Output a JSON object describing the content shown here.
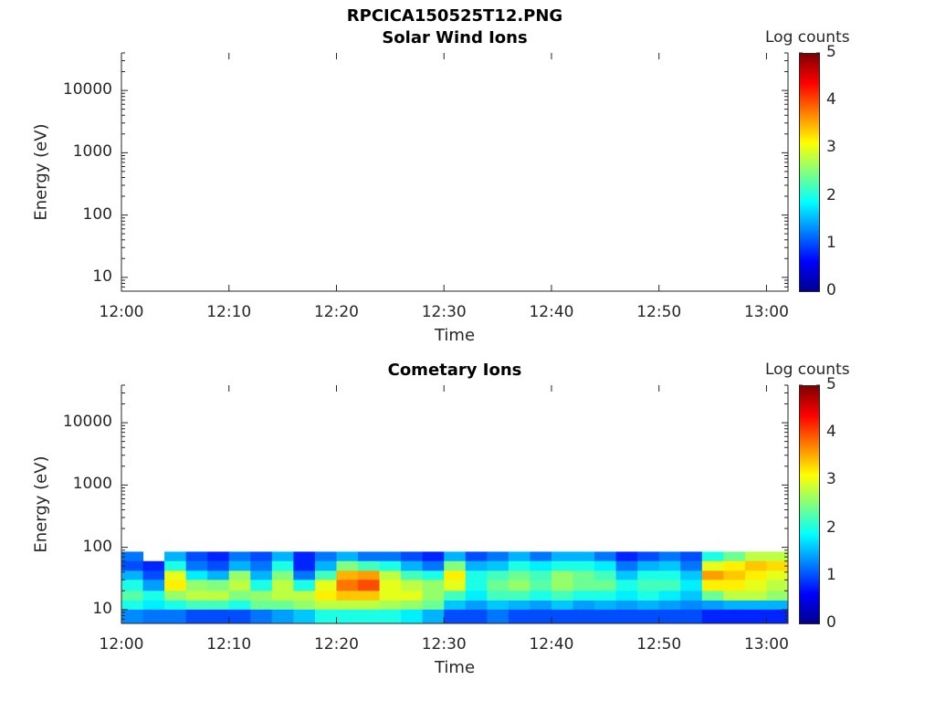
{
  "figure_title": "RPCICA150525T12.PNG",
  "chart_data": [
    {
      "type": "heatmap",
      "title": "Solar Wind Ions",
      "xlabel": "Time",
      "ylabel": "Energy (eV)",
      "xtick_labels": [
        "12:00",
        "12:10",
        "12:20",
        "12:30",
        "12:40",
        "12:50",
        "13:00"
      ],
      "xtick_minutes": [
        0,
        10,
        20,
        30,
        40,
        50,
        60
      ],
      "xlim_minutes": [
        0,
        62
      ],
      "yscale": "log",
      "ytick_labels": [
        "10",
        "100",
        "1000",
        "10000"
      ],
      "ytick_values": [
        10,
        100,
        1000,
        10000
      ],
      "ylim": [
        6,
        40000
      ],
      "colorbar": {
        "label": "Log counts",
        "range": [
          0,
          5
        ],
        "tick_labels": [
          "0",
          "1",
          "2",
          "3",
          "4",
          "5"
        ],
        "colormap": "jet"
      },
      "energy_bin_edges": [],
      "time_bin_minutes": 2,
      "z": []
    },
    {
      "type": "heatmap",
      "title": "Cometary Ions",
      "xlabel": "Time",
      "ylabel": "Energy (eV)",
      "xtick_labels": [
        "12:00",
        "12:10",
        "12:20",
        "12:30",
        "12:40",
        "12:50",
        "13:00"
      ],
      "xtick_minutes": [
        0,
        10,
        20,
        30,
        40,
        50,
        60
      ],
      "xlim_minutes": [
        0,
        62
      ],
      "yscale": "log",
      "ytick_labels": [
        "10",
        "100",
        "1000",
        "10000"
      ],
      "ytick_values": [
        10,
        100,
        1000,
        10000
      ],
      "ylim": [
        6,
        40000
      ],
      "colorbar": {
        "label": "Log counts",
        "range": [
          0,
          5
        ],
        "tick_labels": [
          "0",
          "1",
          "2",
          "3",
          "4",
          "5"
        ],
        "colormap": "jet"
      },
      "energy_bin_edges": [
        85,
        60,
        42,
        30,
        20,
        14,
        10,
        6
      ],
      "time_bin_minutes": 2,
      "z": [
        [
          1.2,
          1.0,
          1.5,
          2.0,
          2.3,
          2.0,
          1.3
        ],
        [
          null,
          0.8,
          1.0,
          1.4,
          2.0,
          1.8,
          1.2
        ],
        [
          1.5,
          2.0,
          3.0,
          3.2,
          2.6,
          2.0,
          1.2
        ],
        [
          1.0,
          1.2,
          1.8,
          2.6,
          2.8,
          2.2,
          1.0
        ],
        [
          0.8,
          1.0,
          1.5,
          2.5,
          2.8,
          2.2,
          1.0
        ],
        [
          1.2,
          1.5,
          2.6,
          2.8,
          2.5,
          2.0,
          1.0
        ],
        [
          1.0,
          1.2,
          1.5,
          2.0,
          2.6,
          2.4,
          1.2
        ],
        [
          1.5,
          2.0,
          2.5,
          2.8,
          2.8,
          2.4,
          1.4
        ],
        [
          0.8,
          0.8,
          1.2,
          2.0,
          2.8,
          2.6,
          1.6
        ],
        [
          1.2,
          1.5,
          2.2,
          3.0,
          3.2,
          2.8,
          2.0
        ],
        [
          1.5,
          2.5,
          3.5,
          3.8,
          3.4,
          2.8,
          2.0
        ],
        [
          1.2,
          2.2,
          3.6,
          4.0,
          3.4,
          2.8,
          2.0
        ],
        [
          1.2,
          2.0,
          2.8,
          3.0,
          3.0,
          2.7,
          2.0
        ],
        [
          1.0,
          1.5,
          2.2,
          2.8,
          3.0,
          2.6,
          1.8
        ],
        [
          0.8,
          1.2,
          2.0,
          2.6,
          2.6,
          2.4,
          1.5
        ],
        [
          1.5,
          2.5,
          3.2,
          3.0,
          2.2,
          1.6,
          1.0
        ],
        [
          1.0,
          1.5,
          2.0,
          2.0,
          1.8,
          1.4,
          1.0
        ],
        [
          1.2,
          1.6,
          2.2,
          2.4,
          2.2,
          1.6,
          1.2
        ],
        [
          1.5,
          2.0,
          2.4,
          2.6,
          2.2,
          1.5,
          1.0
        ],
        [
          1.2,
          1.8,
          2.2,
          2.3,
          2.0,
          1.4,
          1.0
        ],
        [
          1.5,
          2.0,
          2.6,
          2.6,
          2.2,
          1.6,
          1.0
        ],
        [
          1.5,
          2.0,
          2.4,
          2.4,
          2.0,
          1.4,
          1.0
        ],
        [
          1.2,
          1.8,
          2.2,
          2.4,
          2.0,
          1.5,
          1.0
        ],
        [
          0.8,
          1.2,
          1.6,
          2.0,
          1.8,
          1.4,
          1.0
        ],
        [
          1.0,
          1.5,
          2.0,
          2.2,
          2.0,
          1.5,
          1.0
        ],
        [
          1.2,
          1.6,
          2.0,
          2.2,
          1.8,
          1.4,
          1.0
        ],
        [
          1.0,
          1.2,
          1.6,
          1.8,
          1.6,
          1.3,
          1.0
        ],
        [
          2.0,
          3.0,
          3.6,
          3.2,
          2.4,
          1.4,
          0.8
        ],
        [
          2.4,
          3.2,
          3.4,
          3.2,
          2.8,
          1.5,
          0.8
        ],
        [
          2.8,
          3.4,
          3.2,
          3.0,
          2.8,
          1.5,
          0.8
        ],
        [
          2.8,
          3.3,
          3.0,
          2.8,
          2.6,
          1.5,
          0.8
        ]
      ]
    }
  ]
}
